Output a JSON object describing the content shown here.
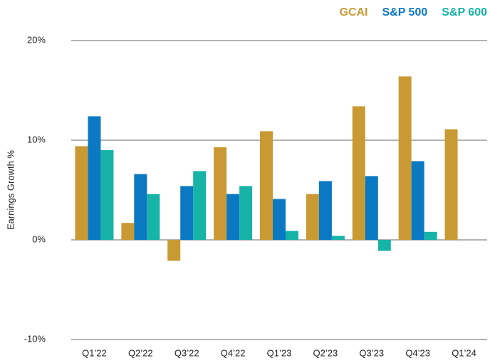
{
  "chart_data": {
    "type": "bar",
    "y_label": "Earnings Growth %",
    "categories": [
      "Q1’22",
      "Q2’22",
      "Q3’22",
      "Q4’22",
      "Q1’23",
      "Q2’23",
      "Q3’23",
      "Q4’23",
      "Q1’24"
    ],
    "series": [
      {
        "name": "GCAI",
        "color": "#c99a34",
        "values": [
          9.4,
          1.7,
          -2.1,
          9.3,
          10.9,
          4.6,
          13.4,
          16.4,
          11.1
        ]
      },
      {
        "name": "S&P 500",
        "color": "#0a78c2",
        "values": [
          12.4,
          6.6,
          5.4,
          4.6,
          4.1,
          5.9,
          6.4,
          7.9,
          null
        ]
      },
      {
        "name": "S&P 600",
        "color": "#16b3a6",
        "values": [
          9.0,
          4.6,
          6.9,
          5.4,
          0.9,
          0.4,
          -1.1,
          0.8,
          null
        ]
      }
    ],
    "ylim": [
      -10,
      20
    ],
    "yticks": [
      {
        "value": -10,
        "label": "-10%"
      },
      {
        "value": 0,
        "label": "0%"
      },
      {
        "value": 10,
        "label": "10%"
      },
      {
        "value": 20,
        "label": "20%"
      }
    ],
    "grid": true
  }
}
